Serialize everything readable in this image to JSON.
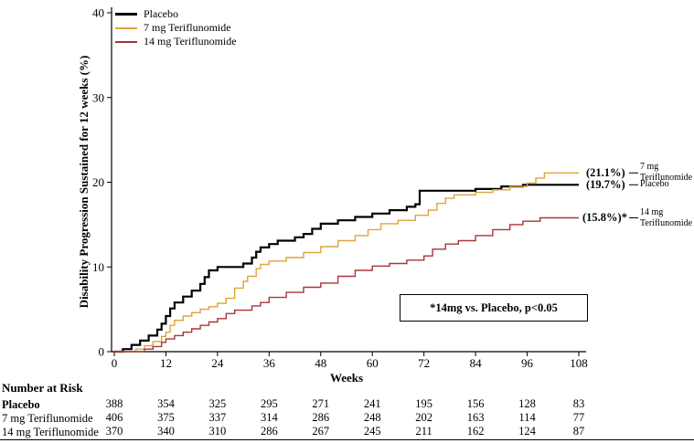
{
  "chart_data": {
    "type": "line",
    "subtype": "kaplan-meier-step-cumulative-incidence",
    "xlabel": "Weeks",
    "ylabel": "Disability Progression Sustained for 12 weeks (%)",
    "xlim": [
      0,
      108
    ],
    "ylim": [
      0,
      40
    ],
    "x_ticks": [
      0,
      12,
      24,
      36,
      48,
      60,
      72,
      84,
      96,
      108
    ],
    "y_ticks": [
      0,
      10,
      20,
      30,
      40
    ],
    "grid": false,
    "legend_position": "top-left-inside",
    "annotation": "*14mg vs. Placebo, p<0.05",
    "series": [
      {
        "name": "Placebo",
        "color": "#000000",
        "end_label": "(19.7%)",
        "right_label_lines": [
          "Placebo"
        ],
        "final_value_pct": 19.7,
        "points": [
          [
            0,
            0
          ],
          [
            2,
            0.3
          ],
          [
            4,
            0.8
          ],
          [
            6,
            1.3
          ],
          [
            8,
            1.9
          ],
          [
            10,
            2.6
          ],
          [
            11,
            3.3
          ],
          [
            12,
            4.2
          ],
          [
            13,
            5.1
          ],
          [
            14,
            5.8
          ],
          [
            16,
            6.5
          ],
          [
            18,
            7.2
          ],
          [
            20,
            8.0
          ],
          [
            21,
            8.8
          ],
          [
            22,
            9.6
          ],
          [
            24,
            10.0
          ],
          [
            30,
            10.4
          ],
          [
            32,
            11.1
          ],
          [
            33,
            11.8
          ],
          [
            34,
            12.3
          ],
          [
            36,
            12.7
          ],
          [
            38,
            13.1
          ],
          [
            42,
            13.5
          ],
          [
            44,
            13.9
          ],
          [
            46,
            14.5
          ],
          [
            48,
            15.1
          ],
          [
            52,
            15.5
          ],
          [
            56,
            15.9
          ],
          [
            60,
            16.3
          ],
          [
            64,
            16.7
          ],
          [
            68,
            17.1
          ],
          [
            70,
            17.4
          ],
          [
            71,
            19.0
          ],
          [
            84,
            19.2
          ],
          [
            90,
            19.5
          ],
          [
            95,
            19.7
          ],
          [
            108,
            19.7
          ]
        ]
      },
      {
        "name": "7 mg Teriflunomide",
        "color": "#DFA43A",
        "end_label": "(21.1%)",
        "right_label_lines": [
          "7 mg",
          "Teriflunomide"
        ],
        "final_value_pct": 21.1,
        "points": [
          [
            0,
            0
          ],
          [
            5,
            0.3
          ],
          [
            7,
            0.7
          ],
          [
            9,
            1.2
          ],
          [
            11,
            1.8
          ],
          [
            12,
            2.3
          ],
          [
            13,
            3.1
          ],
          [
            14,
            3.7
          ],
          [
            16,
            4.2
          ],
          [
            18,
            4.6
          ],
          [
            20,
            5.0
          ],
          [
            22,
            5.3
          ],
          [
            24,
            5.7
          ],
          [
            26,
            6.3
          ],
          [
            28,
            7.5
          ],
          [
            30,
            8.3
          ],
          [
            31,
            8.9
          ],
          [
            33,
            9.8
          ],
          [
            34,
            10.3
          ],
          [
            36,
            10.7
          ],
          [
            40,
            11.1
          ],
          [
            44,
            11.7
          ],
          [
            48,
            12.4
          ],
          [
            52,
            13.1
          ],
          [
            56,
            13.7
          ],
          [
            59,
            14.4
          ],
          [
            62,
            15.1
          ],
          [
            66,
            15.5
          ],
          [
            70,
            16.1
          ],
          [
            73,
            16.7
          ],
          [
            75,
            17.5
          ],
          [
            77,
            18.1
          ],
          [
            79,
            18.5
          ],
          [
            84,
            18.8
          ],
          [
            88,
            19.1
          ],
          [
            92,
            19.5
          ],
          [
            96,
            19.9
          ],
          [
            98,
            20.5
          ],
          [
            100,
            21.1
          ],
          [
            108,
            21.1
          ]
        ]
      },
      {
        "name": "14 mg Teriflunomide",
        "color": "#A93439",
        "end_label": "(15.8%)*",
        "right_label_lines": [
          "14 mg",
          "Teriflunomide"
        ],
        "final_value_pct": 15.8,
        "points": [
          [
            0,
            0
          ],
          [
            7,
            0.3
          ],
          [
            9,
            0.6
          ],
          [
            11,
            1.1
          ],
          [
            12,
            1.5
          ],
          [
            14,
            1.9
          ],
          [
            16,
            2.3
          ],
          [
            18,
            2.7
          ],
          [
            20,
            3.1
          ],
          [
            22,
            3.5
          ],
          [
            24,
            3.9
          ],
          [
            26,
            4.5
          ],
          [
            28,
            4.9
          ],
          [
            32,
            5.4
          ],
          [
            34,
            5.8
          ],
          [
            36,
            6.4
          ],
          [
            40,
            7.0
          ],
          [
            44,
            7.6
          ],
          [
            48,
            8.1
          ],
          [
            52,
            8.9
          ],
          [
            56,
            9.6
          ],
          [
            60,
            10.1
          ],
          [
            64,
            10.4
          ],
          [
            68,
            10.8
          ],
          [
            72,
            11.3
          ],
          [
            74,
            12.1
          ],
          [
            77,
            12.7
          ],
          [
            80,
            13.1
          ],
          [
            84,
            13.7
          ],
          [
            88,
            14.4
          ],
          [
            92,
            15.0
          ],
          [
            95,
            15.4
          ],
          [
            99,
            15.8
          ],
          [
            108,
            15.8
          ]
        ]
      }
    ],
    "number_at_risk": {
      "header": "Number at Risk",
      "weeks": [
        0,
        12,
        24,
        36,
        48,
        60,
        72,
        84,
        96,
        108
      ],
      "rows": [
        {
          "label": "Placebo",
          "values": [
            388,
            354,
            325,
            295,
            271,
            241,
            195,
            156,
            128,
            83
          ]
        },
        {
          "label": "7 mg Teriflunomide",
          "values": [
            406,
            375,
            337,
            314,
            286,
            248,
            202,
            163,
            114,
            77
          ]
        },
        {
          "label": "14 mg Teriflunomide",
          "values": [
            370,
            340,
            310,
            286,
            267,
            245,
            211,
            162,
            124,
            87
          ]
        }
      ]
    }
  }
}
